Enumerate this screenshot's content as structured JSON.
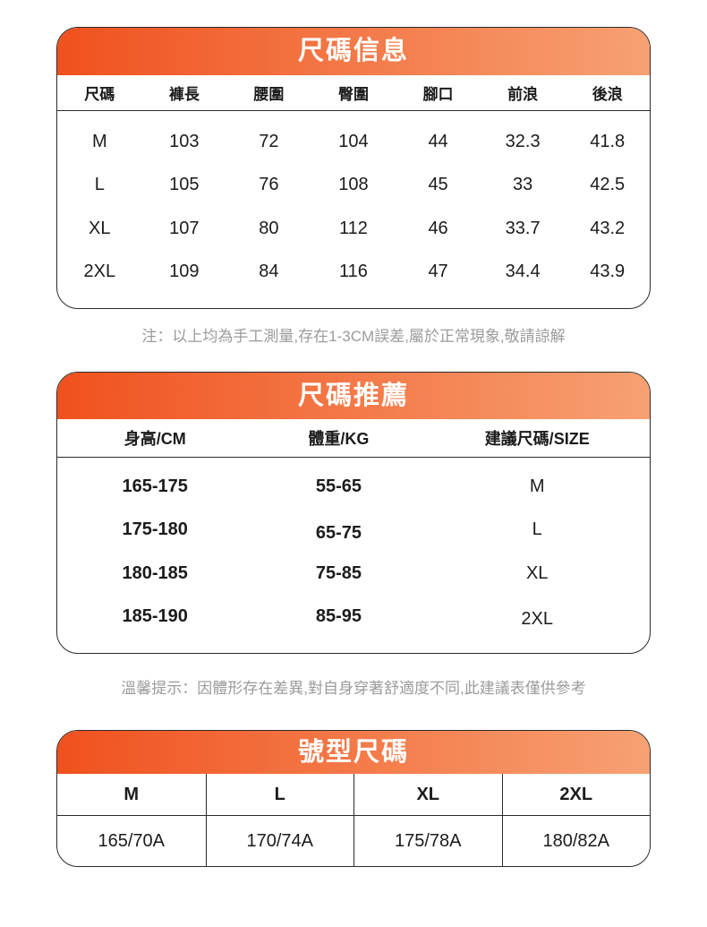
{
  "theme": {
    "gradient_left": "#f0511e",
    "gradient_right": "#f7a173",
    "border_color": "#2b2b2b",
    "title_color": "#ffffff",
    "text_color": "#1b1b1b",
    "note_color": "#9b9b9b"
  },
  "size_info_table": {
    "title": "尺碼信息",
    "columns": [
      "尺碼",
      "褲長",
      "腰圍",
      "臀圍",
      "腳口",
      "前浪",
      "後浪"
    ],
    "rows": [
      [
        "M",
        "103",
        "72",
        "104",
        "44",
        "32.3",
        "41.8"
      ],
      [
        "L",
        "105",
        "76",
        "108",
        "45",
        "33",
        "42.5"
      ],
      [
        "XL",
        "107",
        "80",
        "112",
        "46",
        "33.7",
        "43.2"
      ],
      [
        "2XL",
        "109",
        "84",
        "116",
        "47",
        "34.4",
        "43.9"
      ]
    ],
    "note": "注：以上均為手工測量,存在1-3CM誤差,屬於正常現象,敬請諒解"
  },
  "size_recommend_table": {
    "title": "尺碼推薦",
    "columns": [
      "身高/CM",
      "體重/KG",
      "建議尺碼/SIZE"
    ],
    "rows": [
      [
        "165-175",
        "55-65",
        "M"
      ],
      [
        "175-180",
        "65-75",
        "L"
      ],
      [
        "180-185",
        "75-85",
        "XL"
      ],
      [
        "185-190",
        "85-95",
        "2XL"
      ]
    ],
    "note": "溫馨提示：因體形存在差異,對自身穿著舒適度不同,此建議表僅供參考"
  },
  "model_size_table": {
    "title": "號型尺碼",
    "sizes": [
      "M",
      "L",
      "XL",
      "2XL"
    ],
    "values": [
      "165/70A",
      "170/74A",
      "175/78A",
      "180/82A"
    ]
  }
}
